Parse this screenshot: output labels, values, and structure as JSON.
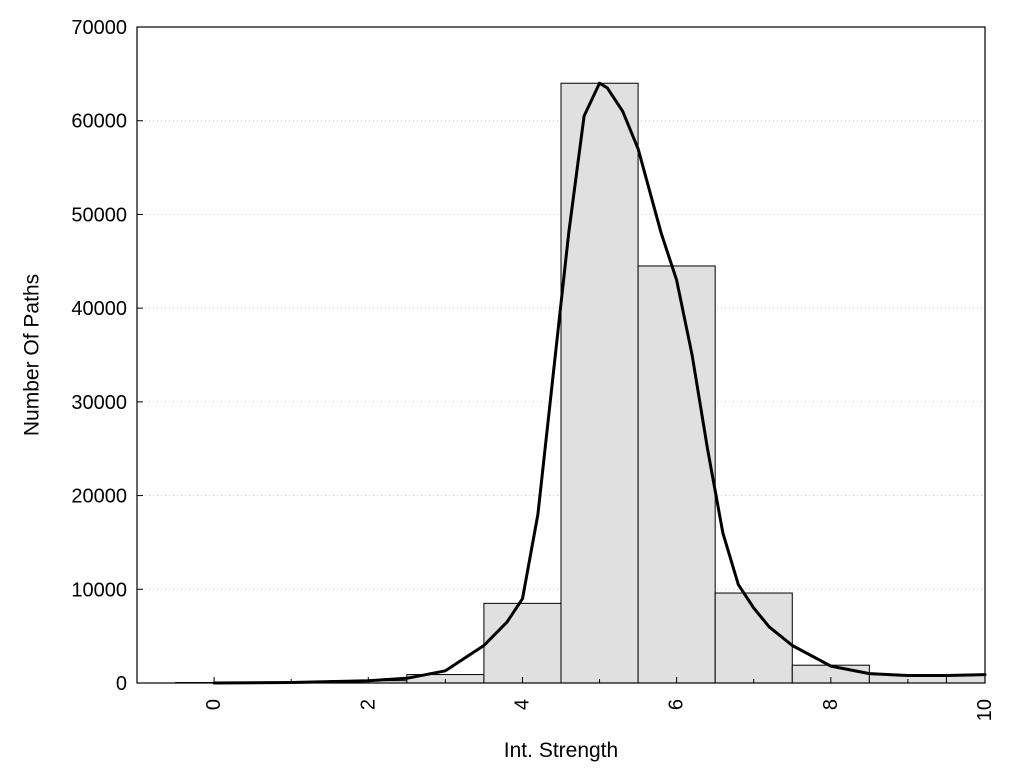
{
  "chart_data": {
    "type": "bar",
    "xlabel": "Int. Strength",
    "ylabel": "Number Of Paths",
    "xlim": [
      -1,
      10
    ],
    "ylim": [
      0,
      70000
    ],
    "x_ticks": [
      "0",
      "2",
      "4",
      "6",
      "8",
      "10"
    ],
    "y_ticks": [
      "0",
      "10000",
      "20000",
      "30000",
      "40000",
      "50000",
      "60000",
      "70000"
    ],
    "grid": "horizontal-dotted",
    "bars": {
      "x": [
        0,
        1,
        2,
        3,
        4,
        5,
        6,
        7,
        8,
        9,
        10
      ],
      "values": [
        50,
        100,
        250,
        900,
        8500,
        64000,
        44500,
        9600,
        1900,
        900,
        900
      ]
    },
    "fit_curve": {
      "x": [
        0,
        1,
        2,
        2.5,
        3,
        3.5,
        3.8,
        4,
        4.2,
        4.4,
        4.6,
        4.8,
        5,
        5.1,
        5.3,
        5.5,
        5.8,
        6,
        6.2,
        6.4,
        6.6,
        6.8,
        7,
        7.2,
        7.5,
        8,
        8.5,
        9,
        9.5,
        10
      ],
      "values": [
        0,
        50,
        250,
        500,
        1300,
        4000,
        6500,
        9000,
        18000,
        33000,
        48000,
        60500,
        64000,
        63500,
        61000,
        57000,
        48000,
        43000,
        35000,
        25000,
        16000,
        10500,
        8000,
        6000,
        4000,
        1800,
        1000,
        800,
        800,
        900
      ]
    }
  }
}
